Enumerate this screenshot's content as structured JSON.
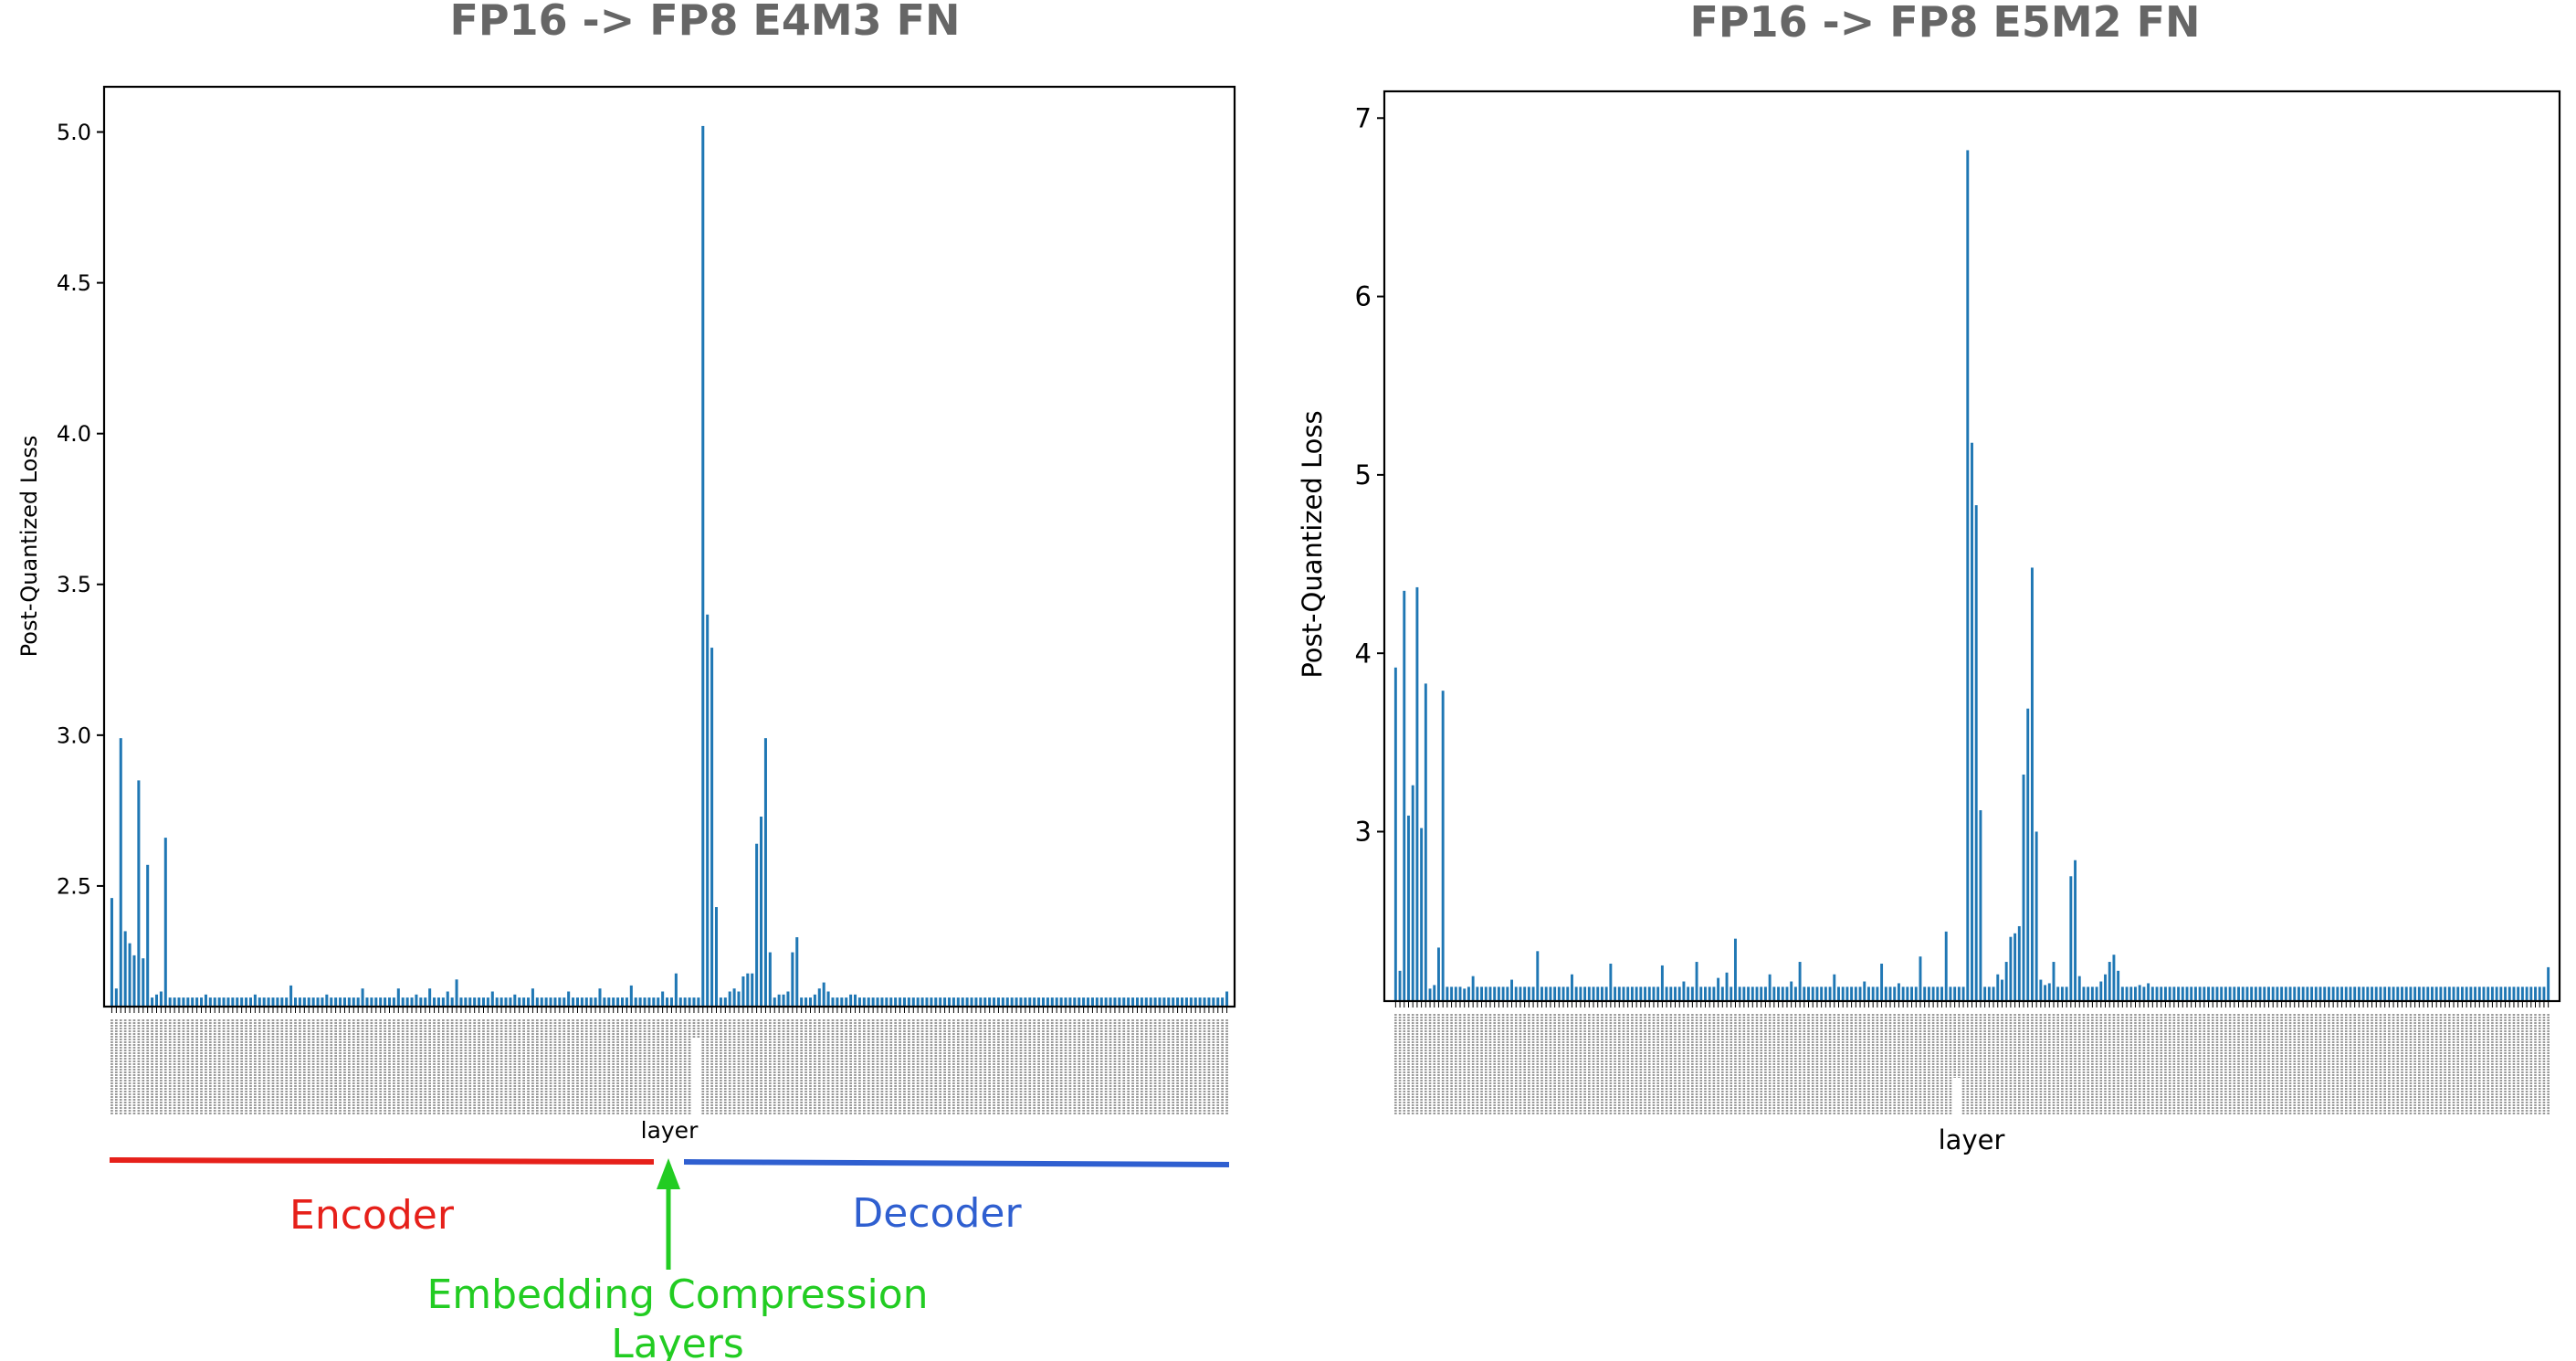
{
  "chart_data": [
    {
      "type": "bar",
      "title": "FP16 -> FP8 E4M3 FN",
      "xlabel": "layer",
      "ylabel": "Post-Quantized Loss",
      "ylim": [
        2.1,
        5.15
      ],
      "yticks": [
        "2.5",
        "3.0",
        "3.5",
        "4.0",
        "4.5",
        "5.0"
      ],
      "bar_color": "#1f77b4",
      "grid": false,
      "values": [
        2.46,
        2.16,
        2.99,
        2.35,
        2.31,
        2.27,
        2.85,
        2.26,
        2.57,
        2.13,
        2.14,
        2.15,
        2.66,
        2.13,
        2.13,
        2.13,
        2.13,
        2.13,
        2.13,
        2.13,
        2.13,
        2.14,
        2.13,
        2.13,
        2.13,
        2.13,
        2.13,
        2.13,
        2.13,
        2.13,
        2.13,
        2.13,
        2.14,
        2.13,
        2.13,
        2.13,
        2.13,
        2.13,
        2.13,
        2.13,
        2.17,
        2.13,
        2.13,
        2.13,
        2.13,
        2.13,
        2.13,
        2.13,
        2.14,
        2.13,
        2.13,
        2.13,
        2.13,
        2.13,
        2.13,
        2.13,
        2.16,
        2.13,
        2.13,
        2.13,
        2.13,
        2.13,
        2.13,
        2.13,
        2.16,
        2.13,
        2.13,
        2.13,
        2.14,
        2.13,
        2.13,
        2.16,
        2.13,
        2.13,
        2.13,
        2.15,
        2.13,
        2.19,
        2.13,
        2.13,
        2.13,
        2.13,
        2.13,
        2.13,
        2.13,
        2.15,
        2.13,
        2.13,
        2.13,
        2.13,
        2.14,
        2.13,
        2.13,
        2.13,
        2.16,
        2.13,
        2.13,
        2.13,
        2.13,
        2.13,
        2.13,
        2.13,
        2.15,
        2.13,
        2.13,
        2.13,
        2.13,
        2.13,
        2.13,
        2.16,
        2.13,
        2.13,
        2.13,
        2.13,
        2.13,
        2.13,
        2.17,
        2.13,
        2.13,
        2.13,
        2.13,
        2.13,
        2.13,
        2.15,
        2.13,
        2.13,
        2.21,
        2.13,
        2.13,
        2.13,
        2.13,
        2.13,
        5.02,
        3.4,
        3.29,
        2.43,
        2.13,
        2.13,
        2.15,
        2.16,
        2.15,
        2.2,
        2.21,
        2.21,
        2.64,
        2.73,
        2.99,
        2.28,
        2.13,
        2.14,
        2.14,
        2.15,
        2.28,
        2.33,
        2.13,
        2.13,
        2.13,
        2.14,
        2.16,
        2.18,
        2.15,
        2.13,
        2.13,
        2.13,
        2.13,
        2.14,
        2.14,
        2.13,
        2.13,
        2.13,
        2.13,
        2.13,
        2.13,
        2.13,
        2.13,
        2.13,
        2.13,
        2.13,
        2.13,
        2.13,
        2.13,
        2.13,
        2.13,
        2.13,
        2.13,
        2.13,
        2.13,
        2.13,
        2.13,
        2.13,
        2.13,
        2.13,
        2.13,
        2.13,
        2.13,
        2.13,
        2.13,
        2.13,
        2.13,
        2.13,
        2.13,
        2.13,
        2.13,
        2.13,
        2.13,
        2.13,
        2.13,
        2.13,
        2.13,
        2.13,
        2.13,
        2.13,
        2.13,
        2.13,
        2.13,
        2.13,
        2.13,
        2.13,
        2.13,
        2.13,
        2.13,
        2.13,
        2.13,
        2.13,
        2.13,
        2.13,
        2.13,
        2.13,
        2.13,
        2.13,
        2.13,
        2.13,
        2.13,
        2.13,
        2.13,
        2.13,
        2.13,
        2.13,
        2.13,
        2.13,
        2.13,
        2.13,
        2.13,
        2.13,
        2.13,
        2.13,
        2.13,
        2.13,
        2.13,
        2.15
      ]
    },
    {
      "type": "bar",
      "title": "FP16 -> FP8 E5M2 FN",
      "xlabel": "layer",
      "ylabel": "Post-Quantized Loss",
      "ylim": [
        2.05,
        7.15
      ],
      "yticks": [
        "3",
        "4",
        "5",
        "6",
        "7"
      ],
      "bar_color": "#1f77b4",
      "grid": false,
      "values": [
        3.92,
        2.22,
        4.35,
        3.09,
        3.26,
        4.37,
        3.02,
        3.83,
        2.12,
        2.14,
        2.35,
        3.79,
        2.13,
        2.13,
        2.13,
        2.13,
        2.12,
        2.13,
        2.19,
        2.13,
        2.13,
        2.13,
        2.13,
        2.13,
        2.13,
        2.13,
        2.13,
        2.17,
        2.13,
        2.13,
        2.13,
        2.13,
        2.13,
        2.33,
        2.13,
        2.13,
        2.13,
        2.13,
        2.13,
        2.13,
        2.13,
        2.2,
        2.13,
        2.13,
        2.13,
        2.13,
        2.13,
        2.13,
        2.13,
        2.13,
        2.26,
        2.13,
        2.13,
        2.13,
        2.13,
        2.13,
        2.13,
        2.13,
        2.13,
        2.13,
        2.13,
        2.13,
        2.25,
        2.13,
        2.13,
        2.13,
        2.13,
        2.16,
        2.13,
        2.13,
        2.27,
        2.13,
        2.13,
        2.13,
        2.13,
        2.18,
        2.13,
        2.21,
        2.13,
        2.4,
        2.13,
        2.13,
        2.13,
        2.13,
        2.13,
        2.13,
        2.13,
        2.2,
        2.13,
        2.13,
        2.13,
        2.13,
        2.16,
        2.13,
        2.27,
        2.13,
        2.13,
        2.13,
        2.13,
        2.13,
        2.13,
        2.13,
        2.2,
        2.13,
        2.13,
        2.13,
        2.13,
        2.13,
        2.13,
        2.16,
        2.13,
        2.13,
        2.13,
        2.26,
        2.13,
        2.13,
        2.13,
        2.15,
        2.13,
        2.13,
        2.13,
        2.13,
        2.3,
        2.13,
        2.13,
        2.13,
        2.13,
        2.13,
        2.44,
        2.13,
        2.13,
        2.13,
        2.13,
        6.82,
        5.18,
        4.83,
        3.12,
        2.13,
        2.13,
        2.13,
        2.2,
        2.17,
        2.27,
        2.41,
        2.43,
        2.47,
        3.32,
        3.69,
        4.48,
        3.0,
        2.17,
        2.14,
        2.15,
        2.27,
        2.13,
        2.13,
        2.13,
        2.75,
        2.84,
        2.19,
        2.13,
        2.13,
        2.13,
        2.13,
        2.16,
        2.2,
        2.27,
        2.31,
        2.22,
        2.13,
        2.13,
        2.13,
        2.13,
        2.14,
        2.13,
        2.15,
        2.13,
        2.13,
        2.13,
        2.13,
        2.13,
        2.13,
        2.13,
        2.13,
        2.13,
        2.13,
        2.13,
        2.13,
        2.13,
        2.13,
        2.13,
        2.13,
        2.13,
        2.13,
        2.13,
        2.13,
        2.13,
        2.13,
        2.13,
        2.13,
        2.13,
        2.13,
        2.13,
        2.13,
        2.13,
        2.13,
        2.13,
        2.13,
        2.13,
        2.13,
        2.13,
        2.13,
        2.13,
        2.13,
        2.13,
        2.13,
        2.13,
        2.13,
        2.13,
        2.13,
        2.13,
        2.13,
        2.13,
        2.13,
        2.13,
        2.13,
        2.13,
        2.13,
        2.13,
        2.13,
        2.13,
        2.13,
        2.13,
        2.13,
        2.13,
        2.13,
        2.13,
        2.13,
        2.13,
        2.13,
        2.13,
        2.13,
        2.13,
        2.13,
        2.13,
        2.13,
        2.13,
        2.13,
        2.13,
        2.13,
        2.13,
        2.13,
        2.13,
        2.13,
        2.13,
        2.13,
        2.13,
        2.13,
        2.13,
        2.13,
        2.13,
        2.13,
        2.13,
        2.13,
        2.13,
        2.13,
        2.13,
        2.13,
        2.24
      ]
    }
  ],
  "annotations": {
    "encoder": {
      "label": "Encoder",
      "color": "#e6201a"
    },
    "decoder": {
      "label": "Decoder",
      "color": "#2f5fd0"
    },
    "embedding": {
      "label_line1": "Embedding Compression",
      "label_line2": "Layers",
      "color": "#22cc22"
    }
  }
}
